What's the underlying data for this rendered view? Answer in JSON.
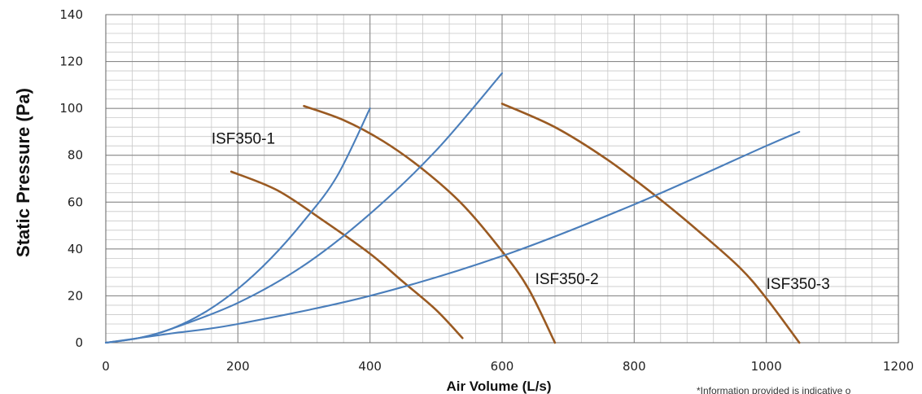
{
  "chart_data": {
    "type": "line",
    "title": "",
    "xlabel": "Air Volume (L/s)",
    "ylabel": "Static Pressure (Pa)",
    "xlim": [
      0,
      1200
    ],
    "ylim": [
      0,
      140
    ],
    "x_major_ticks": [
      0,
      200,
      400,
      600,
      800,
      1000,
      1200
    ],
    "y_major_ticks": [
      0,
      20,
      40,
      60,
      80,
      100,
      120,
      140
    ],
    "x_minor_step": 40,
    "y_minor_step": 4,
    "grid": true,
    "fan_curve_color": "#9a5a22",
    "system_curve_color": "#4a7ebb",
    "series": [
      {
        "kind": "fan",
        "x": [
          190,
          260,
          330,
          400,
          450,
          500,
          540
        ],
        "y": [
          73,
          65,
          52,
          38,
          26,
          14,
          2
        ]
      },
      {
        "kind": "fan",
        "x": [
          300,
          360,
          420,
          480,
          540,
          600,
          640,
          680
        ],
        "y": [
          101,
          95,
          86,
          74,
          59,
          39,
          23,
          0
        ]
      },
      {
        "kind": "fan",
        "x": [
          600,
          680,
          760,
          840,
          900,
          960,
          1000,
          1050
        ],
        "y": [
          102,
          92,
          78,
          61,
          47,
          32,
          19,
          0
        ]
      },
      {
        "kind": "system",
        "x": [
          0,
          50,
          100,
          150,
          200,
          250,
          300,
          350,
          400
        ],
        "y": [
          0,
          2,
          6,
          13,
          23,
          36,
          52,
          71,
          100
        ]
      },
      {
        "kind": "system",
        "x": [
          0,
          50,
          100,
          200,
          300,
          400,
          500,
          600
        ],
        "y": [
          0,
          2,
          6,
          17,
          33,
          55,
          82,
          115
        ]
      },
      {
        "kind": "system",
        "x": [
          0,
          50,
          100,
          200,
          400,
          600,
          800,
          1000,
          1050
        ],
        "y": [
          0,
          2,
          4,
          8,
          20,
          37,
          59,
          84,
          90
        ]
      }
    ],
    "annotations": [
      {
        "text": "ISF350-1",
        "x": 160,
        "y": 85
      },
      {
        "text": "ISF350-2",
        "x": 650,
        "y": 25
      },
      {
        "text": "ISF350-3",
        "x": 1000,
        "y": 23
      }
    ],
    "footnote": "*Information provided is indicative o"
  }
}
